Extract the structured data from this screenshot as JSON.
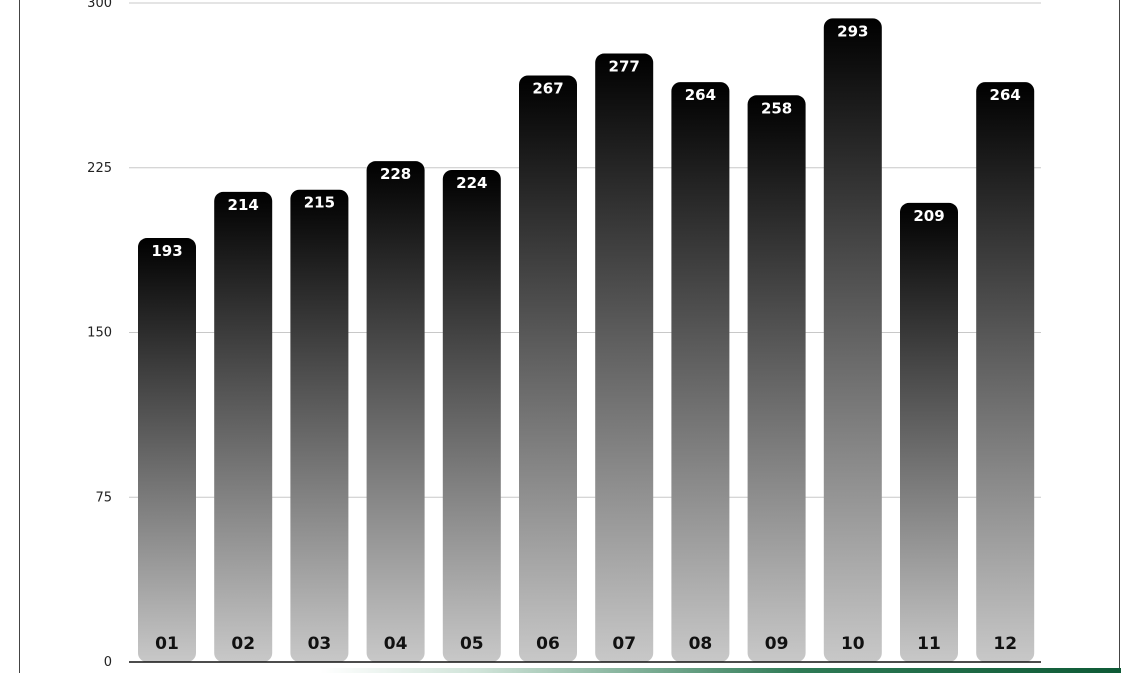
{
  "chart_data": {
    "type": "bar",
    "categories": [
      "01",
      "02",
      "03",
      "04",
      "05",
      "06",
      "07",
      "08",
      "09",
      "10",
      "11",
      "12"
    ],
    "values": [
      193,
      214,
      215,
      228,
      224,
      267,
      277,
      264,
      258,
      293,
      209,
      264
    ],
    "yticks": [
      "0",
      "75",
      "150",
      "225",
      "300"
    ],
    "ylim": [
      0,
      300
    ],
    "grid": true,
    "title": "",
    "xlabel": "",
    "ylabel": "",
    "bar_gradient": [
      "#000000",
      "#c8c8c8"
    ]
  }
}
